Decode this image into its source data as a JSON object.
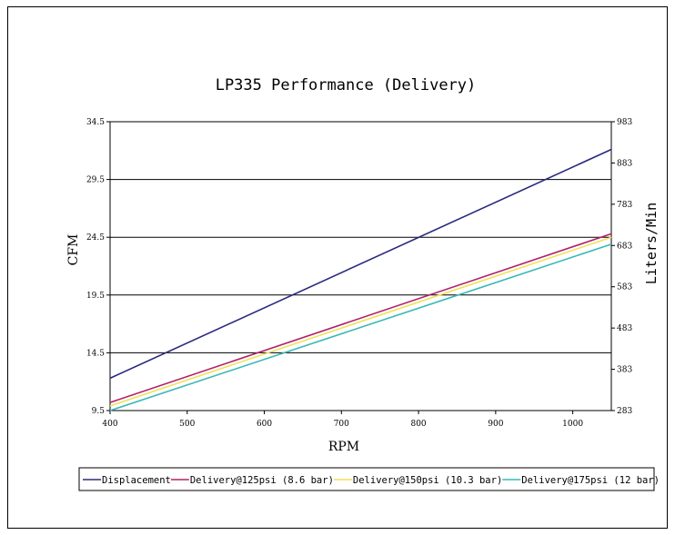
{
  "chart_data": {
    "type": "line",
    "title": "LP335 Performance (Delivery)",
    "xlabel": "RPM",
    "ylabel": "CFM",
    "y2label": "Liters/Min",
    "xlim": [
      400,
      1050
    ],
    "ylim": [
      9.5,
      34.5
    ],
    "y2lim": [
      283,
      983
    ],
    "x_ticks": [
      "400",
      "500",
      "600",
      "700",
      "800",
      "900",
      "1000"
    ],
    "y_ticks": [
      "9.5",
      "14.5",
      "19.5",
      "24.5",
      "29.5",
      "34.5"
    ],
    "y2_ticks": [
      "283",
      "383",
      "483",
      "583",
      "683",
      "783",
      "883",
      "983"
    ],
    "grid": "horizontal",
    "legend_position": "bottom",
    "x": [
      400,
      1050
    ],
    "series": [
      {
        "name": "Displacement",
        "color": "#2b2b7f",
        "values": [
          12.3,
          32.1
        ]
      },
      {
        "name": "Delivery@125psi (8.6 bar)",
        "color": "#b0206a",
        "values": [
          10.2,
          24.8
        ]
      },
      {
        "name": "Delivery@150psi (10.3 bar)",
        "color": "#f2e15a",
        "values": [
          9.9,
          24.5
        ]
      },
      {
        "name": "Delivery@175psi (12 bar)",
        "color": "#3ab8b8",
        "values": [
          9.5,
          23.9
        ]
      }
    ]
  }
}
